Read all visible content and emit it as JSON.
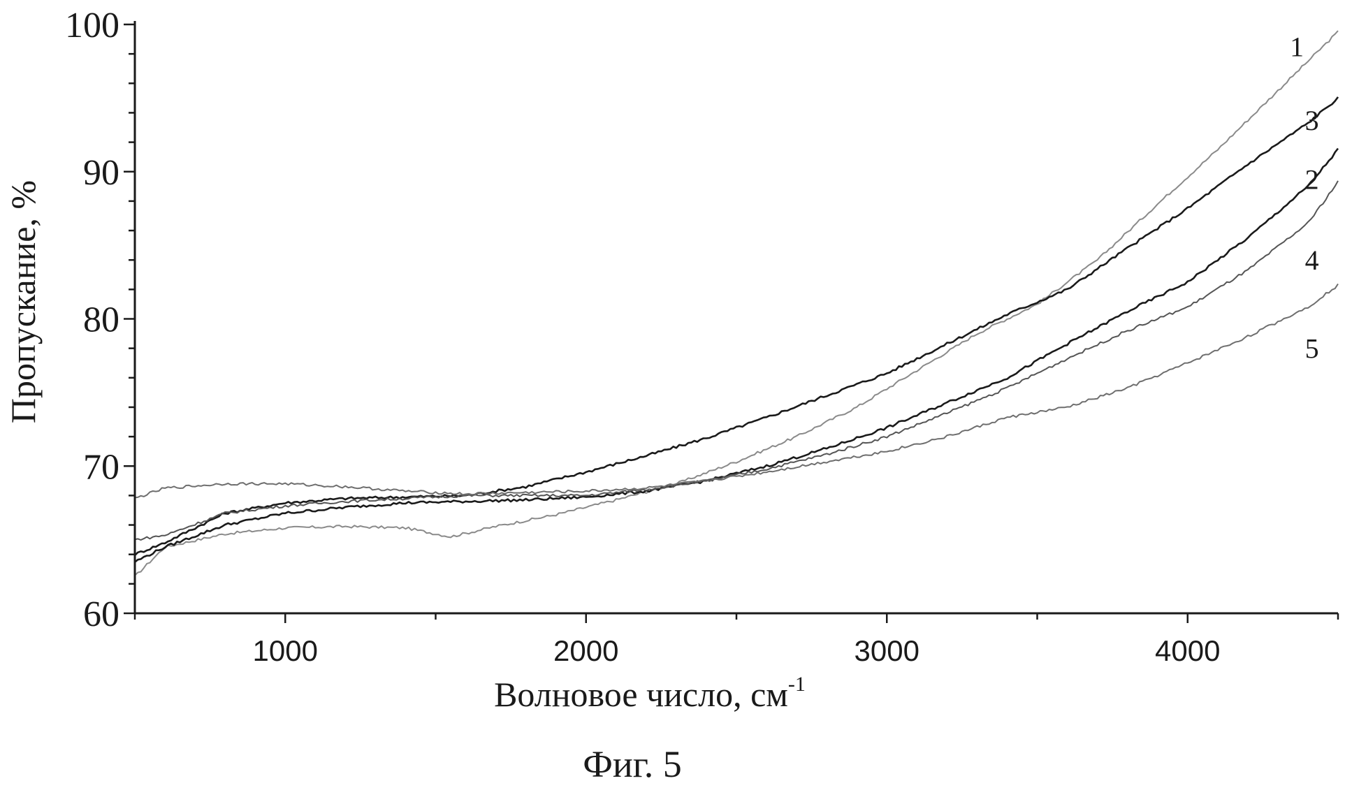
{
  "figure_caption": "Фиг. 5",
  "chart_data": {
    "type": "line",
    "xlabel": "Волновое число, см",
    "xlabel_superscript": "-1",
    "ylabel": "Пропускание, %",
    "xlim": [
      500,
      4500
    ],
    "ylim": [
      60,
      100
    ],
    "x_major_ticks": [
      1000,
      2000,
      3000,
      4000
    ],
    "x_minor_ticks": [
      500,
      1500,
      2500,
      3500,
      4500
    ],
    "y_major_ticks": [
      60,
      70,
      80,
      90,
      100
    ],
    "y_tick_labels": [
      "60",
      "70",
      "80",
      "90",
      "100"
    ],
    "x_tick_labels": [
      "1000",
      "2000",
      "3000",
      "4000"
    ],
    "grid": false,
    "series": [
      {
        "name": "1",
        "color": "#8a8a8a",
        "x": [
          500,
          600,
          800,
          1000,
          1200,
          1400,
          1550,
          1700,
          1900,
          2100,
          2300,
          2500,
          2700,
          2900,
          3100,
          3300,
          3500,
          3700,
          3900,
          4100,
          4300,
          4500
        ],
        "y": [
          62.5,
          64.5,
          65.4,
          65.8,
          65.9,
          65.8,
          65.2,
          65.9,
          66.7,
          67.7,
          68.8,
          70.3,
          72.0,
          74.0,
          76.5,
          79.0,
          81.0,
          84.0,
          87.8,
          91.5,
          95.5,
          99.5
        ]
      },
      {
        "name": "3",
        "color": "#1a1a1a",
        "x": [
          500,
          600,
          800,
          1000,
          1200,
          1400,
          1600,
          1800,
          2000,
          2200,
          2400,
          2600,
          2800,
          3000,
          3200,
          3400,
          3600,
          3800,
          4000,
          4200,
          4400,
          4500
        ],
        "y": [
          64.0,
          64.8,
          66.8,
          67.5,
          67.8,
          67.9,
          68.0,
          68.6,
          69.6,
          70.7,
          71.9,
          73.3,
          74.8,
          76.3,
          78.3,
          80.3,
          82.0,
          84.8,
          87.5,
          90.5,
          93.3,
          95.0
        ]
      },
      {
        "name": "2",
        "color": "#1a1a1a",
        "x": [
          500,
          600,
          800,
          1000,
          1200,
          1400,
          1600,
          1800,
          2000,
          2200,
          2400,
          2600,
          2800,
          3000,
          3200,
          3400,
          3600,
          3800,
          4000,
          4200,
          4400,
          4500
        ],
        "y": [
          63.5,
          64.5,
          66.0,
          66.8,
          67.2,
          67.5,
          67.6,
          67.7,
          67.9,
          68.3,
          69.0,
          70.0,
          71.2,
          72.6,
          74.3,
          76.0,
          78.3,
          80.5,
          82.5,
          85.5,
          89.0,
          91.5
        ]
      },
      {
        "name": "4",
        "color": "#555555",
        "x": [
          500,
          600,
          800,
          1000,
          1200,
          1400,
          1600,
          1800,
          2000,
          2200,
          2400,
          2600,
          2800,
          3000,
          3200,
          3400,
          3600,
          3800,
          4000,
          4200,
          4400,
          4500
        ],
        "y": [
          65.0,
          65.3,
          66.8,
          67.3,
          67.6,
          67.8,
          68.0,
          68.0,
          68.0,
          68.4,
          69.0,
          69.8,
          70.8,
          72.0,
          73.6,
          75.3,
          77.3,
          79.2,
          80.8,
          83.3,
          86.5,
          89.3
        ]
      },
      {
        "name": "5",
        "color": "#6e6e6e",
        "x": [
          500,
          600,
          800,
          1000,
          1200,
          1400,
          1600,
          1800,
          2000,
          2200,
          2400,
          2600,
          2800,
          3000,
          3200,
          3400,
          3600,
          3800,
          4000,
          4200,
          4400,
          4500
        ],
        "y": [
          67.8,
          68.5,
          68.8,
          68.8,
          68.6,
          68.3,
          68.1,
          68.2,
          68.3,
          68.5,
          69.0,
          69.6,
          70.3,
          71.0,
          72.0,
          73.3,
          74.0,
          75.3,
          77.0,
          78.8,
          80.8,
          82.3
        ]
      }
    ],
    "curve_labels": [
      {
        "text": "1",
        "x": 4340,
        "y": 98.5
      },
      {
        "text": "3",
        "x": 4390,
        "y": 93.5
      },
      {
        "text": "2",
        "x": 4390,
        "y": 89.5
      },
      {
        "text": "4",
        "x": 4390,
        "y": 84.0
      },
      {
        "text": "5",
        "x": 4390,
        "y": 78.0
      }
    ]
  }
}
